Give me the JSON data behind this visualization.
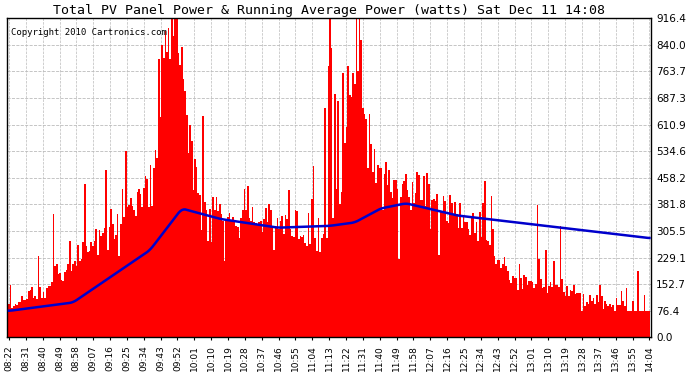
{
  "title": "Total PV Panel Power & Running Average Power (watts) Sat Dec 11 14:08",
  "copyright": "Copyright 2010 Cartronics.com",
  "background_color": "#ffffff",
  "plot_bg_color": "#ffffff",
  "bar_color": "#ff0000",
  "line_color": "#0000cc",
  "ylim": [
    0,
    916.4
  ],
  "yticks": [
    0.0,
    76.4,
    152.7,
    229.1,
    305.5,
    381.8,
    458.2,
    534.6,
    610.9,
    687.3,
    763.7,
    840.0,
    916.4
  ],
  "xtick_labels": [
    "08:22",
    "08:31",
    "08:40",
    "08:49",
    "08:58",
    "09:07",
    "09:16",
    "09:25",
    "09:34",
    "09:43",
    "09:52",
    "10:01",
    "10:10",
    "10:19",
    "10:28",
    "10:37",
    "10:46",
    "10:55",
    "11:04",
    "11:13",
    "11:22",
    "11:31",
    "11:40",
    "11:49",
    "11:58",
    "12:07",
    "12:16",
    "12:25",
    "12:34",
    "12:43",
    "12:52",
    "13:01",
    "13:10",
    "13:19",
    "13:28",
    "13:37",
    "13:46",
    "13:55",
    "14:04"
  ],
  "n_points": 390,
  "avg_keypoints_x": [
    0.0,
    0.1,
    0.22,
    0.27,
    0.33,
    0.42,
    0.5,
    0.54,
    0.58,
    0.62,
    0.7,
    1.0
  ],
  "avg_keypoints_y": [
    76,
    100,
    250,
    370,
    340,
    315,
    320,
    330,
    370,
    385,
    350,
    285
  ]
}
